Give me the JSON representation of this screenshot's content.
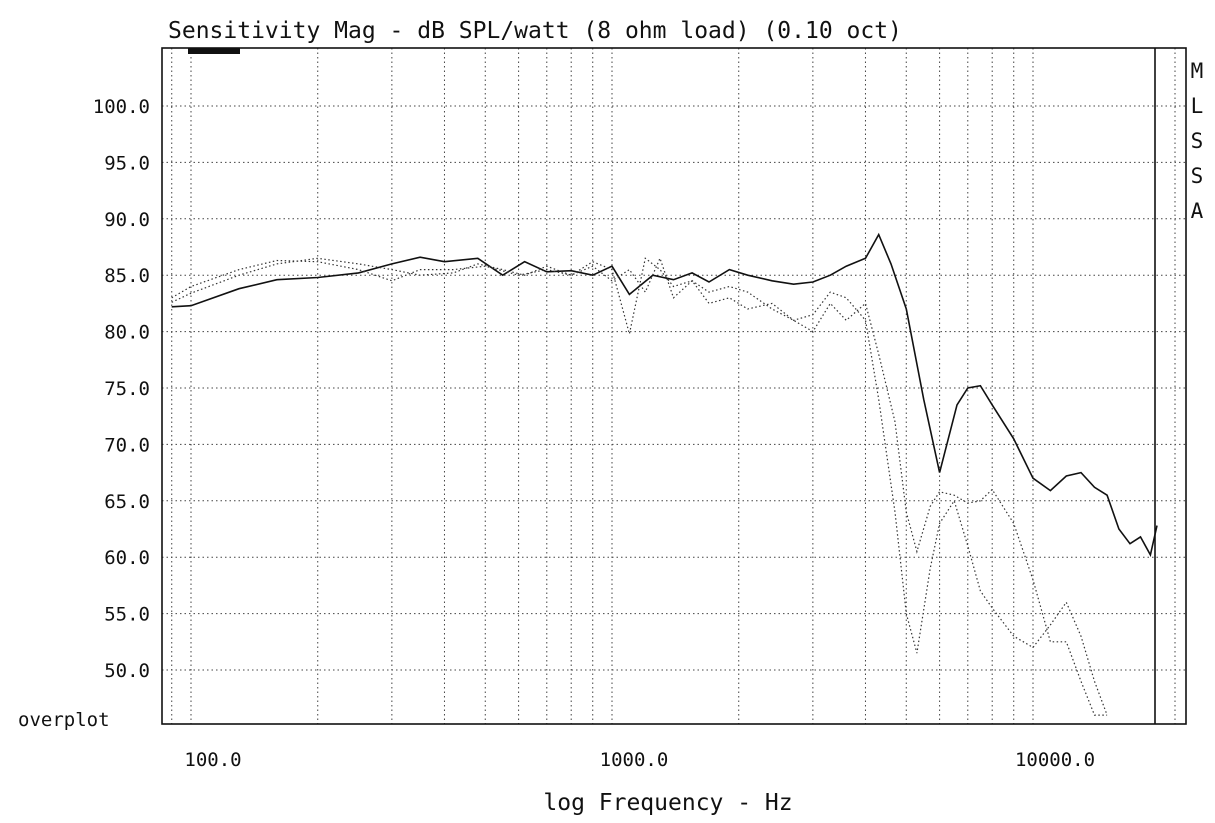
{
  "chart_data": {
    "type": "line",
    "title": "Sensitivity Mag - dB SPL/watt (8 ohm load) (0.10 oct)",
    "xlabel": "log Frequency - Hz",
    "ylabel": "",
    "x_scale": "log",
    "xlim": [
      70,
      22000
    ],
    "ylim": [
      46,
      105
    ],
    "x_ticks": [
      100,
      1000,
      10000
    ],
    "x_tick_labels": [
      "100.0",
      "1000.0",
      "10000.0"
    ],
    "y_ticks": [
      50,
      55,
      60,
      65,
      70,
      75,
      80,
      85,
      90,
      95,
      100
    ],
    "y_tick_labels": [
      "50.0",
      "55.0",
      "60.0",
      "65.0",
      "70.0",
      "75.0",
      "80.0",
      "85.0",
      "90.0",
      "95.0",
      "100.0"
    ],
    "bottom_label": "overplot",
    "side_label": [
      "M",
      "L",
      "S",
      "S",
      "A"
    ],
    "grid": true,
    "series": [
      {
        "style": "solid",
        "x": [
          90,
          100,
          130,
          160,
          200,
          250,
          300,
          350,
          400,
          480,
          550,
          620,
          700,
          800,
          900,
          1000,
          1100,
          1250,
          1400,
          1550,
          1700,
          1900,
          2100,
          2400,
          2700,
          3000,
          3300,
          3600,
          4000,
          4300,
          4600,
          5000,
          5500,
          6000,
          6600,
          7000,
          7500,
          8000,
          9000,
          10000,
          11000,
          12000,
          13000,
          14000,
          15000,
          16000,
          17000,
          18000,
          19000,
          19700
        ],
        "y": [
          82.2,
          82.3,
          83.8,
          84.6,
          84.8,
          85.2,
          86.0,
          86.6,
          86.2,
          86.5,
          85.0,
          86.2,
          85.3,
          85.4,
          85.0,
          85.8,
          83.3,
          85.0,
          84.6,
          85.2,
          84.4,
          85.5,
          85.0,
          84.5,
          84.2,
          84.4,
          85.0,
          85.8,
          86.5,
          88.6,
          86.0,
          82.0,
          74.0,
          67.5,
          73.5,
          75.0,
          75.2,
          73.5,
          70.5,
          67.0,
          65.9,
          67.2,
          67.5,
          66.2,
          65.5,
          62.5,
          61.2,
          61.8,
          60.2,
          62.8
        ]
      },
      {
        "style": "dotted",
        "x": [
          90,
          100,
          130,
          160,
          200,
          250,
          300,
          350,
          420,
          480,
          550,
          620,
          700,
          800,
          900,
          1000,
          1100,
          1200,
          1300,
          1400,
          1550,
          1700,
          1900,
          2100,
          2400,
          2700,
          3000,
          3300,
          3600,
          4000,
          4300,
          4700,
          5000,
          5300,
          5700,
          6000,
          6500,
          7000,
          7500,
          8000,
          9000,
          10000,
          11000,
          12000,
          13000,
          14000,
          15000
        ],
        "y": [
          82.6,
          83.4,
          85.0,
          86.0,
          86.5,
          86.0,
          85.5,
          85.0,
          85.2,
          86.0,
          85.5,
          85.0,
          85.8,
          85.0,
          86.2,
          85.5,
          79.8,
          86.5,
          85.5,
          84.0,
          84.5,
          83.5,
          84.0,
          83.5,
          82.0,
          81.0,
          80.0,
          82.5,
          81.0,
          82.5,
          78.0,
          72.0,
          64.0,
          60.5,
          64.5,
          65.8,
          65.5,
          64.8,
          65.0,
          66.0,
          63.0,
          58.0,
          52.5,
          52.5,
          49.0,
          46.0,
          46.0
        ]
      },
      {
        "style": "dotted",
        "x": [
          90,
          100,
          130,
          160,
          200,
          250,
          300,
          350,
          420,
          500,
          600,
          700,
          800,
          900,
          1000,
          1100,
          1200,
          1300,
          1400,
          1550,
          1700,
          1900,
          2100,
          2400,
          2700,
          3000,
          3300,
          3600,
          4000,
          4300,
          4700,
          5000,
          5300,
          5700,
          6000,
          6500,
          7000,
          7500,
          8000,
          9000,
          10000,
          11000,
          12000,
          13000,
          14000,
          15000
        ],
        "y": [
          83.0,
          84.0,
          85.5,
          86.3,
          86.2,
          85.5,
          84.5,
          85.5,
          85.5,
          85.8,
          85.0,
          85.5,
          85.0,
          85.8,
          84.5,
          85.5,
          83.5,
          86.5,
          83.0,
          84.5,
          82.5,
          83.0,
          82.0,
          82.5,
          81.0,
          81.5,
          83.5,
          83.0,
          81.0,
          74.0,
          64.0,
          55.0,
          51.5,
          59.0,
          63.0,
          65.0,
          61.0,
          57.0,
          55.5,
          53.0,
          52.0,
          54.0,
          56.0,
          53.0,
          49.0,
          46.0
        ]
      }
    ]
  }
}
